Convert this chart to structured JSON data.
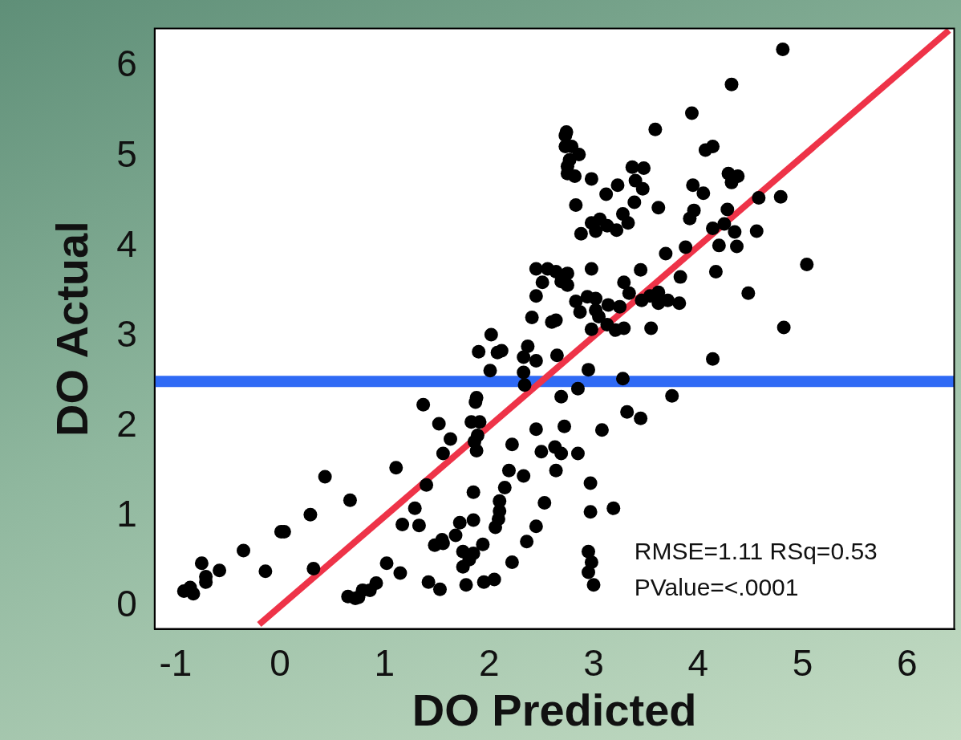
{
  "chart_data": {
    "type": "scatter",
    "xlabel": "DO Predicted",
    "ylabel": "DO Actual",
    "xlim": [
      -1.2,
      6.45
    ],
    "ylim": [
      -0.25,
      6.42
    ],
    "xticks": [
      -1,
      0,
      1,
      2,
      3,
      4,
      5,
      6
    ],
    "yticks": [
      0,
      1,
      2,
      3,
      4,
      5,
      6
    ],
    "annotations": [
      "RMSE=1.11 RSq=0.53",
      "PValue=<.0001"
    ],
    "ref_lines": [
      {
        "axis": "y",
        "value": 2.5,
        "color": "#2f6af5"
      }
    ],
    "series": [
      {
        "marker": "circle",
        "color": "#000000",
        "x": [
          -0.92,
          -0.86,
          -0.83,
          -0.75,
          -0.71,
          -0.71,
          -0.58,
          -0.35,
          -0.14,
          0.01,
          0.04,
          0.29,
          0.43,
          0.67,
          0.32,
          1.11,
          1.37,
          1.52,
          1.63,
          1.56,
          1.4,
          1.29,
          1.17,
          1.33,
          1.02,
          1.15,
          0.65,
          0.72,
          0.75,
          0.79,
          0.86,
          0.92,
          1.42,
          1.53,
          1.78,
          1.95,
          1.85,
          1.85,
          1.72,
          1.68,
          1.48,
          1.55,
          1.56,
          1.75,
          1.85,
          1.81,
          1.75,
          1.94,
          1.83,
          1.91,
          1.89,
          1.86,
          1.88,
          1.87,
          2.45,
          2.56,
          2.64,
          2.75,
          2.69,
          2.75,
          2.51,
          2.45,
          2.98,
          3.45,
          3.69,
          3.88,
          4.2,
          4.37,
          3.29,
          3.34,
          2.83,
          2.94,
          3.02,
          2.87,
          3.02,
          3.05,
          3.14,
          3.25,
          3.46,
          3.54,
          3.62,
          3.62,
          3.71,
          3.82,
          3.83,
          4.17,
          4.48,
          5.04,
          4.82,
          4.14,
          2.41,
          2.6,
          2.64,
          2.98,
          3.13,
          3.21,
          3.29,
          3.55,
          2.02,
          1.9,
          2.08,
          2.12,
          2.37,
          2.33,
          2.45,
          2.65,
          2.01,
          2.33,
          2.34,
          2.95,
          3.28,
          2.85,
          1.88,
          2.69,
          3.75,
          3.32,
          3.45,
          2.22,
          2.45,
          2.72,
          3.08,
          2.5,
          2.63,
          2.69,
          2.85,
          2.19,
          2.33,
          2.64,
          2.15,
          2.1,
          2.1,
          2.09,
          2.06,
          2.53,
          2.97,
          2.97,
          3.19,
          2.45,
          2.36,
          2.22,
          2.05,
          2.95,
          2.98,
          2.95,
          3.0,
          4.81,
          4.32,
          3.94,
          3.59,
          2.74,
          2.73,
          2.73,
          2.79,
          2.86,
          2.77,
          2.75,
          2.75,
          2.82,
          2.98,
          3.23,
          3.12,
          3.37,
          3.48,
          3.4,
          3.47,
          3.39,
          3.62,
          2.83,
          3.28,
          3.33,
          2.98,
          3.06,
          3.13,
          3.22,
          3.02,
          2.88,
          4.07,
          4.14,
          4.29,
          4.38,
          4.32,
          3.95,
          4.05,
          4.58,
          4.79,
          4.28,
          3.96,
          3.92,
          4.25,
          4.14,
          4.35,
          4.56
        ],
        "values": [
          0.17,
          0.21,
          0.14,
          0.48,
          0.33,
          0.27,
          0.4,
          0.62,
          0.39,
          0.83,
          0.83,
          1.02,
          1.44,
          1.18,
          0.42,
          1.54,
          2.24,
          2.03,
          1.86,
          1.7,
          1.35,
          1.09,
          0.91,
          0.9,
          0.48,
          0.37,
          0.11,
          0.09,
          0.1,
          0.18,
          0.18,
          0.26,
          0.27,
          0.19,
          0.24,
          0.27,
          1.27,
          0.96,
          0.93,
          0.79,
          0.68,
          0.74,
          0.7,
          0.61,
          0.59,
          0.52,
          0.44,
          0.69,
          2.05,
          2.05,
          1.9,
          1.83,
          1.73,
          2.27,
          3.75,
          3.75,
          3.72,
          3.7,
          3.61,
          3.57,
          3.6,
          3.45,
          3.75,
          3.74,
          3.92,
          3.99,
          4.01,
          4.0,
          3.6,
          3.48,
          3.39,
          3.44,
          3.42,
          3.27,
          3.29,
          3.22,
          3.35,
          3.33,
          3.4,
          3.45,
          3.49,
          3.37,
          3.4,
          3.37,
          3.66,
          3.72,
          3.48,
          3.8,
          3.1,
          2.75,
          3.21,
          3.16,
          3.18,
          3.08,
          3.13,
          3.07,
          3.09,
          3.09,
          3.02,
          2.83,
          2.82,
          2.84,
          2.89,
          2.77,
          2.73,
          2.79,
          2.62,
          2.6,
          2.46,
          2.63,
          2.53,
          2.42,
          2.32,
          2.33,
          2.34,
          2.16,
          2.09,
          1.8,
          1.97,
          2.0,
          1.96,
          1.72,
          1.77,
          1.7,
          1.7,
          1.51,
          1.45,
          1.51,
          1.32,
          1.17,
          1.06,
          0.97,
          0.88,
          1.15,
          1.37,
          1.05,
          1.09,
          0.89,
          0.72,
          0.49,
          0.3,
          0.61,
          0.49,
          0.38,
          0.24,
          6.19,
          5.8,
          5.48,
          5.3,
          5.27,
          5.23,
          5.11,
          5.11,
          5.02,
          4.96,
          4.89,
          4.81,
          4.78,
          4.75,
          4.68,
          4.58,
          4.88,
          4.87,
          4.73,
          4.64,
          4.49,
          4.43,
          4.46,
          4.36,
          4.26,
          4.26,
          4.3,
          4.23,
          4.18,
          4.17,
          4.14,
          5.07,
          5.11,
          4.81,
          4.78,
          4.71,
          4.68,
          4.59,
          4.54,
          4.55,
          4.41,
          4.4,
          4.31,
          4.25,
          4.2,
          4.16,
          4.17
        ]
      },
      {
        "type": "line",
        "color": "#ee3348",
        "x": [
          -0.2,
          6.4
        ],
        "values": [
          -0.2,
          6.4
        ]
      }
    ]
  }
}
